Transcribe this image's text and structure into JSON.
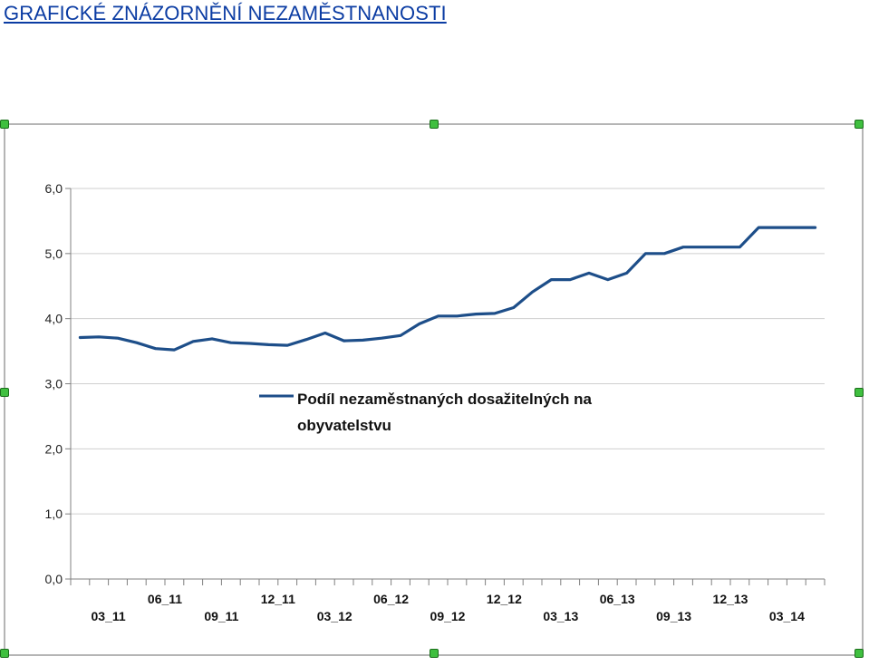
{
  "page": {
    "title": "GRAFICKÉ ZNÁZORNĚNÍ NEZAMĚSTNANOSTI"
  },
  "colors": {
    "title": "#0b3ca3",
    "series": "#1d4e89",
    "grid": "#cfcfcf",
    "axis": "#808080",
    "selection_handle": "#3fbf3f"
  },
  "chart_data": {
    "type": "line",
    "legend": {
      "lines": [
        "Podíl nezaměstnaných dosažitelných na",
        "obyvatelstvu"
      ],
      "placement": "center"
    },
    "ylim": [
      0,
      6
    ],
    "y_ticks": [
      "0,0",
      "1,0",
      "2,0",
      "3,0",
      "4,0",
      "5,0",
      "6,0"
    ],
    "grid": true,
    "x_tick_labels": [
      {
        "index": 2,
        "text": "03_11"
      },
      {
        "index": 5,
        "text": "06_11"
      },
      {
        "index": 8,
        "text": "09_11"
      },
      {
        "index": 11,
        "text": "12_11"
      },
      {
        "index": 14,
        "text": "03_12"
      },
      {
        "index": 17,
        "text": "06_12"
      },
      {
        "index": 20,
        "text": "09_12"
      },
      {
        "index": 23,
        "text": "12_12"
      },
      {
        "index": 26,
        "text": "03_13"
      },
      {
        "index": 29,
        "text": "06_13"
      },
      {
        "index": 32,
        "text": "09_13"
      },
      {
        "index": 35,
        "text": "12_13"
      },
      {
        "index": 38,
        "text": "03_14"
      }
    ],
    "series": [
      {
        "name": "Podíl nezaměstnaných dosažitelných na obyvatelstvu",
        "values": [
          3.71,
          3.72,
          3.7,
          3.63,
          3.54,
          3.52,
          3.65,
          3.69,
          3.63,
          3.62,
          3.6,
          3.59,
          3.68,
          3.78,
          3.66,
          3.67,
          3.7,
          3.74,
          3.92,
          4.04,
          4.04,
          4.07,
          4.08,
          4.17,
          4.41,
          4.6,
          4.6,
          4.7,
          4.6,
          4.7,
          5.0,
          5.0,
          5.1,
          5.1,
          5.1,
          5.1,
          5.4,
          5.4,
          5.4,
          5.4
        ]
      }
    ]
  }
}
